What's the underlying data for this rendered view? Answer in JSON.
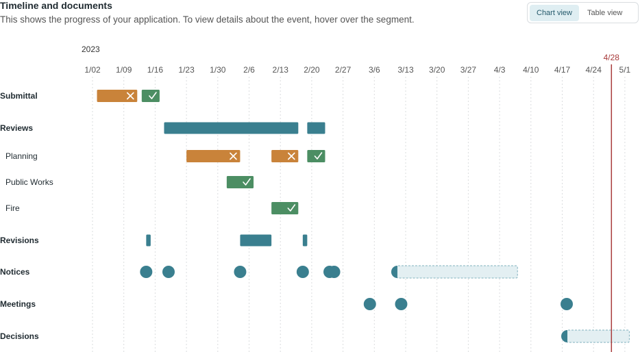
{
  "header": {
    "title": "Timeline and documents",
    "subtitle": "This shows the progress of your application. To view details about the event, hover over the segment."
  },
  "view_toggle": {
    "options": [
      "Chart view",
      "Table view"
    ],
    "selected": "Chart view"
  },
  "colors": {
    "failed": "#c9833a",
    "passed": "#4c8e63",
    "review": "#3a7f8f",
    "pending_fill": "#e3eff2",
    "pending_stroke": "#7fb0bd",
    "today": "#a83a3a",
    "grid": "#dadcde"
  },
  "chart_data": {
    "type": "timeline",
    "year_label": "2023",
    "x_ticks": [
      "1/02",
      "1/09",
      "1/16",
      "1/23",
      "1/30",
      "2/6",
      "2/13",
      "2/20",
      "2/27",
      "3/6",
      "3/13",
      "3/20",
      "3/27",
      "4/3",
      "4/10",
      "4/17",
      "4/24",
      "5/1"
    ],
    "x_tick_dates": [
      "2023-01-02",
      "2023-01-09",
      "2023-01-16",
      "2023-01-23",
      "2023-01-30",
      "2023-02-06",
      "2023-02-13",
      "2023-02-20",
      "2023-02-27",
      "2023-03-06",
      "2023-03-13",
      "2023-03-20",
      "2023-03-27",
      "2023-04-03",
      "2023-04-10",
      "2023-04-17",
      "2023-04-24",
      "2023-05-01"
    ],
    "today": {
      "label": "4/28",
      "date": "2023-04-28"
    },
    "rows": [
      {
        "label": "Submittal",
        "kind": "category",
        "events": [
          {
            "type": "bar",
            "status": "failed",
            "start": "2023-01-03",
            "end": "2023-01-12"
          },
          {
            "type": "bar",
            "status": "passed",
            "start": "2023-01-13",
            "end": "2023-01-17"
          }
        ]
      },
      {
        "label": "Reviews",
        "kind": "category",
        "events": [
          {
            "type": "bar",
            "status": "review",
            "start": "2023-01-18",
            "end": "2023-02-17"
          },
          {
            "type": "bar",
            "status": "review",
            "start": "2023-02-19",
            "end": "2023-02-23"
          }
        ]
      },
      {
        "label": "Planning",
        "kind": "sub",
        "events": [
          {
            "type": "bar",
            "status": "failed",
            "start": "2023-01-23",
            "end": "2023-02-04"
          },
          {
            "type": "bar",
            "status": "failed",
            "start": "2023-02-11",
            "end": "2023-02-17"
          },
          {
            "type": "bar",
            "status": "passed",
            "start": "2023-02-19",
            "end": "2023-02-23"
          }
        ]
      },
      {
        "label": "Public Works",
        "kind": "sub",
        "events": [
          {
            "type": "bar",
            "status": "passed",
            "start": "2023-02-01",
            "end": "2023-02-07"
          }
        ]
      },
      {
        "label": "Fire",
        "kind": "sub",
        "events": [
          {
            "type": "bar",
            "status": "passed",
            "start": "2023-02-11",
            "end": "2023-02-17"
          }
        ]
      },
      {
        "label": "Revisions",
        "kind": "category",
        "events": [
          {
            "type": "bar",
            "status": "review",
            "start": "2023-01-14",
            "end": "2023-01-15"
          },
          {
            "type": "bar",
            "status": "review",
            "start": "2023-02-04",
            "end": "2023-02-11"
          },
          {
            "type": "bar",
            "status": "review",
            "start": "2023-02-18",
            "end": "2023-02-19"
          }
        ]
      },
      {
        "label": "Notices",
        "kind": "category",
        "events": [
          {
            "type": "dot",
            "date": "2023-01-14"
          },
          {
            "type": "dot",
            "date": "2023-01-19"
          },
          {
            "type": "dot",
            "date": "2023-02-04"
          },
          {
            "type": "dot",
            "date": "2023-02-18"
          },
          {
            "type": "dot",
            "date": "2023-02-24"
          },
          {
            "type": "dot",
            "date": "2023-02-25"
          },
          {
            "type": "pending",
            "start": "2023-03-11",
            "end": "2023-04-07"
          }
        ]
      },
      {
        "label": "Meetings",
        "kind": "category",
        "events": [
          {
            "type": "dot",
            "date": "2023-03-05"
          },
          {
            "type": "dot",
            "date": "2023-03-12"
          },
          {
            "type": "dot",
            "date": "2023-04-18"
          }
        ]
      },
      {
        "label": "Decisions",
        "kind": "category",
        "events": [
          {
            "type": "pending",
            "start": "2023-04-18",
            "end": "2023-05-02"
          }
        ]
      }
    ]
  }
}
